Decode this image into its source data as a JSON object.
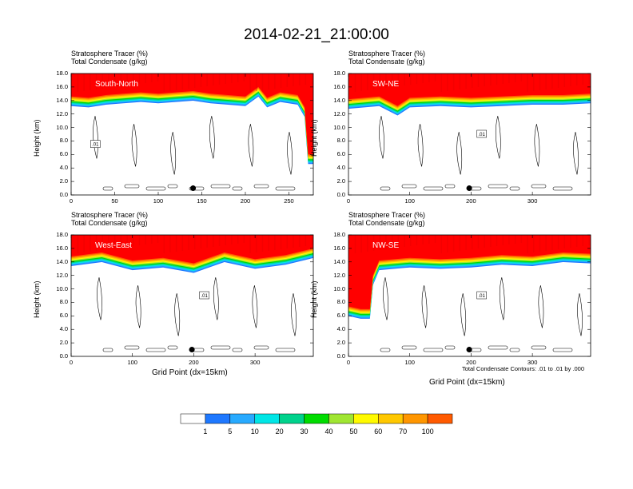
{
  "title": "2014-02-21_21:00:00",
  "panel_header": {
    "line1": "Stratosphere Tracer   (%)",
    "line2": "Total Condensate   (g/kg)"
  },
  "ylabel": "Height (km)",
  "xlabel": "Grid Point (dx=15km)",
  "contour_note": "Total Condensate Contours: .01 to .01 by .000",
  "contour_label": ".01",
  "colors": {
    "levels": [
      "#ffffff",
      "#1e78ff",
      "#28aaff",
      "#00e6e6",
      "#00d28c",
      "#00dc00",
      "#a0e632",
      "#fffa00",
      "#ffc800",
      "#ff9600",
      "#ff5a00",
      "#ff0000"
    ]
  },
  "colorbar": {
    "labels": [
      "1",
      "5",
      "10",
      "20",
      "30",
      "40",
      "50",
      "60",
      "70",
      "100"
    ]
  },
  "chart_data": [
    {
      "type": "heatmap",
      "panel_label": "South-North",
      "xlim": [
        0,
        278
      ],
      "ylim": [
        0,
        18
      ],
      "x_ticks": [
        "0",
        "50",
        "100",
        "150",
        "200",
        "250"
      ],
      "y_ticks": [
        "0.0",
        "2.0",
        "4.0",
        "6.0",
        "8.0",
        "10.0",
        "12.0",
        "14.0",
        "16.0",
        "18.0"
      ],
      "tropopause_km": [
        [
          0,
          14.6
        ],
        [
          20,
          14.4
        ],
        [
          40,
          14.8
        ],
        [
          60,
          15.0
        ],
        [
          80,
          15.2
        ],
        [
          100,
          15.0
        ],
        [
          120,
          15.2
        ],
        [
          140,
          15.4
        ],
        [
          160,
          15.0
        ],
        [
          180,
          14.8
        ],
        [
          200,
          14.6
        ],
        [
          215,
          16.0
        ],
        [
          225,
          14.4
        ],
        [
          240,
          15.2
        ],
        [
          260,
          14.8
        ],
        [
          268,
          13.0
        ],
        [
          272,
          6.0
        ],
        [
          278,
          6.0
        ]
      ],
      "marker": {
        "x": 140,
        "y": 1.0
      }
    },
    {
      "type": "heatmap",
      "panel_label": "SW-NE",
      "xlim": [
        0,
        395
      ],
      "ylim": [
        0,
        18
      ],
      "x_ticks": [
        "0",
        "100",
        "200",
        "300"
      ],
      "y_ticks": [
        "0.0",
        "2.0",
        "4.0",
        "6.0",
        "8.0",
        "10.0",
        "12.0",
        "14.0",
        "16.0",
        "18.0"
      ],
      "tropopause_km": [
        [
          0,
          14.2
        ],
        [
          50,
          14.6
        ],
        [
          80,
          13.2
        ],
        [
          100,
          14.4
        ],
        [
          150,
          14.6
        ],
        [
          200,
          14.4
        ],
        [
          250,
          14.6
        ],
        [
          300,
          14.8
        ],
        [
          350,
          14.8
        ],
        [
          395,
          15.0
        ]
      ],
      "marker": {
        "x": 197,
        "y": 1.0
      }
    },
    {
      "type": "heatmap",
      "panel_label": "West-East",
      "xlim": [
        0,
        395
      ],
      "ylim": [
        0,
        18
      ],
      "x_ticks": [
        "0",
        "100",
        "200",
        "300"
      ],
      "y_ticks": [
        "0.0",
        "2.0",
        "4.0",
        "6.0",
        "8.0",
        "10.0",
        "12.0",
        "14.0",
        "16.0",
        "18.0"
      ],
      "tropopause_km": [
        [
          0,
          14.8
        ],
        [
          50,
          15.4
        ],
        [
          100,
          14.2
        ],
        [
          150,
          14.6
        ],
        [
          200,
          13.8
        ],
        [
          250,
          15.4
        ],
        [
          300,
          14.4
        ],
        [
          350,
          15.0
        ],
        [
          395,
          16.0
        ]
      ],
      "marker": {
        "x": 197,
        "y": 1.0
      }
    },
    {
      "type": "heatmap",
      "panel_label": "NW-SE",
      "xlim": [
        0,
        395
      ],
      "ylim": [
        0,
        18
      ],
      "x_ticks": [
        "0",
        "100",
        "200",
        "300"
      ],
      "y_ticks": [
        "0.0",
        "2.0",
        "4.0",
        "6.0",
        "8.0",
        "10.0",
        "12.0",
        "14.0",
        "16.0",
        "18.0"
      ],
      "tropopause_km": [
        [
          0,
          7.4
        ],
        [
          20,
          7.0
        ],
        [
          35,
          7.0
        ],
        [
          40,
          12.0
        ],
        [
          50,
          14.2
        ],
        [
          100,
          14.6
        ],
        [
          150,
          14.4
        ],
        [
          200,
          14.6
        ],
        [
          250,
          15.0
        ],
        [
          300,
          14.8
        ],
        [
          350,
          15.4
        ],
        [
          395,
          15.2
        ]
      ],
      "marker": {
        "x": 197,
        "y": 1.0
      }
    }
  ]
}
